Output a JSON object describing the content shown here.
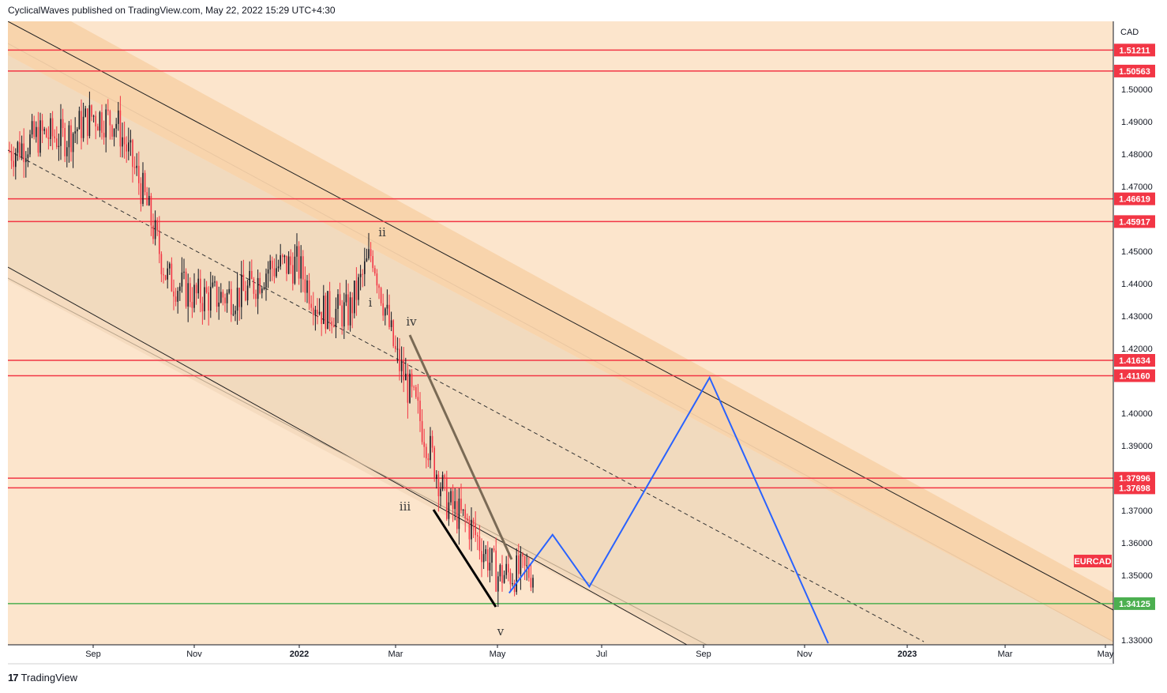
{
  "header": {
    "text": "CyclicalWaves published on TradingView.com, May 22, 2022 15:29 UTC+4:30"
  },
  "footer": {
    "brand": "TradingView",
    "logo_glyph": "17"
  },
  "colors": {
    "background": "#fce5cc",
    "band": "#f7d2a8",
    "channel_fill": "#edd6b8",
    "bull": "#131722",
    "bear": "#f23645",
    "level_red": "#f23645",
    "level_green": "#4caf50",
    "projection": "#2962ff",
    "trend_gray": "#7a6a55"
  },
  "chart_data": {
    "type": "candlestick",
    "symbol": "EURCAD",
    "currency": "CAD",
    "y_ticks": [
      "1.50000",
      "1.49000",
      "1.48000",
      "1.47000",
      "1.45000",
      "1.44000",
      "1.43000",
      "1.42000",
      "1.40000",
      "1.39000",
      "1.37000",
      "1.36000",
      "1.35000",
      "1.33000"
    ],
    "x_ticks": [
      "Sep",
      "Nov",
      "2022",
      "Mar",
      "May",
      "Jul",
      "Sep",
      "Nov",
      "2023",
      "Mar",
      "May"
    ],
    "ylim": [
      1.33,
      1.525
    ],
    "horizontal_levels": [
      {
        "value": 1.51211,
        "label": "1.51211",
        "color": "red"
      },
      {
        "value": 1.50563,
        "label": "1.50563",
        "color": "red"
      },
      {
        "value": 1.46619,
        "label": "1.46619",
        "color": "red"
      },
      {
        "value": 1.45917,
        "label": "1.45917",
        "color": "red"
      },
      {
        "value": 1.41634,
        "label": "1.41634",
        "color": "red"
      },
      {
        "value": 1.4116,
        "label": "1.41160",
        "color": "red"
      },
      {
        "value": 1.37996,
        "label": "1.37996",
        "color": "red"
      },
      {
        "value": 1.37698,
        "label": "1.37698",
        "color": "red"
      },
      {
        "value": 1.34125,
        "label": "1.34125",
        "color": "green"
      }
    ],
    "wave_labels": [
      "ii",
      "i",
      "iv",
      "iii",
      "v"
    ],
    "projection_path": [
      {
        "x": "2022-05-08",
        "y": 1.3445
      },
      {
        "x": "2022-06-03",
        "y": 1.3625
      },
      {
        "x": "2022-06-25",
        "y": 1.3465
      },
      {
        "x": "2022-09-05",
        "y": 1.411
      },
      {
        "x": "2022-11-15",
        "y": 1.329
      }
    ],
    "candles_approx": [
      {
        "x": "2021-07-15",
        "y": 1.481
      },
      {
        "x": "2021-08-01",
        "y": 1.486
      },
      {
        "x": "2021-08-15",
        "y": 1.485
      },
      {
        "x": "2021-09-01",
        "y": 1.492
      },
      {
        "x": "2021-09-15",
        "y": 1.49
      },
      {
        "x": "2021-10-01",
        "y": 1.468
      },
      {
        "x": "2021-10-15",
        "y": 1.442
      },
      {
        "x": "2021-11-01",
        "y": 1.436
      },
      {
        "x": "2021-11-15",
        "y": 1.436
      },
      {
        "x": "2021-12-01",
        "y": 1.437
      },
      {
        "x": "2021-12-15",
        "y": 1.445
      },
      {
        "x": "2022-01-01",
        "y": 1.446
      },
      {
        "x": "2022-01-15",
        "y": 1.432
      },
      {
        "x": "2022-02-01",
        "y": 1.431
      },
      {
        "x": "2022-02-15",
        "y": 1.45
      },
      {
        "x": "2022-03-01",
        "y": 1.418
      },
      {
        "x": "2022-03-15",
        "y": 1.399
      },
      {
        "x": "2022-04-01",
        "y": 1.372
      },
      {
        "x": "2022-04-15",
        "y": 1.365
      },
      {
        "x": "2022-05-01",
        "y": 1.35
      },
      {
        "x": "2022-05-20",
        "y": 1.351
      }
    ]
  }
}
